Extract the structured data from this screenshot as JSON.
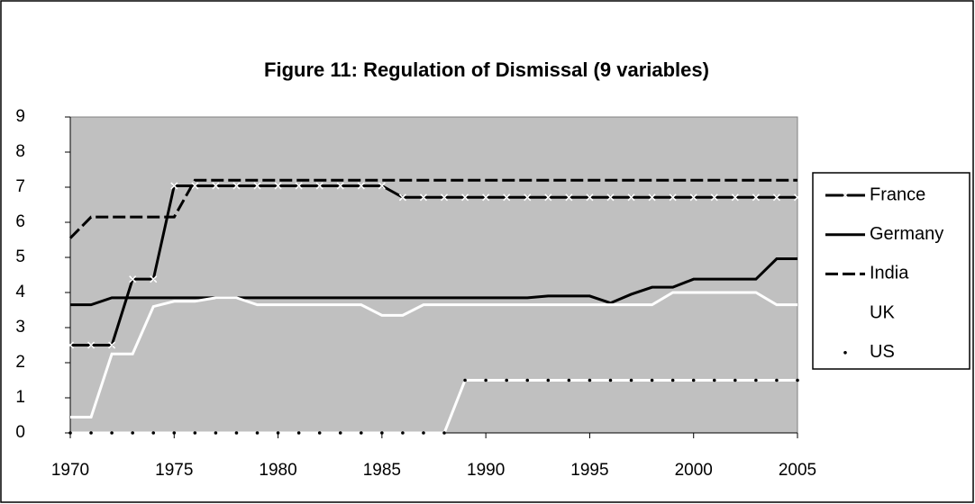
{
  "chart_data": {
    "type": "line",
    "title": "Figure 11: Regulation of Dismissal (9 variables)",
    "x": [
      1970,
      1971,
      1972,
      1973,
      1974,
      1975,
      1976,
      1977,
      1978,
      1979,
      1980,
      1981,
      1982,
      1983,
      1984,
      1985,
      1986,
      1987,
      1988,
      1989,
      1990,
      1991,
      1992,
      1993,
      1994,
      1995,
      1996,
      1997,
      1998,
      1999,
      2000,
      2001,
      2002,
      2003,
      2004,
      2005
    ],
    "xlim": [
      1970,
      2005
    ],
    "xticks": [
      1970,
      1975,
      1980,
      1985,
      1990,
      1995,
      2000,
      2005
    ],
    "ylim": [
      0,
      9
    ],
    "yticks": [
      0,
      1,
      2,
      3,
      4,
      5,
      6,
      7,
      8,
      9
    ],
    "grid": false,
    "background": "#c0c0c0",
    "legend": "right",
    "series": [
      {
        "name": "France",
        "color": "#000000",
        "line_style": "solid",
        "marker": "x",
        "marker_color": "#ffffff",
        "values": [
          2.5,
          2.5,
          2.5,
          4.38,
          4.38,
          7.04,
          7.04,
          7.04,
          7.04,
          7.04,
          7.04,
          7.04,
          7.04,
          7.04,
          7.04,
          7.04,
          6.71,
          6.71,
          6.71,
          6.71,
          6.71,
          6.71,
          6.71,
          6.71,
          6.71,
          6.71,
          6.71,
          6.71,
          6.71,
          6.71,
          6.71,
          6.71,
          6.71,
          6.71,
          6.71,
          6.71
        ]
      },
      {
        "name": "Germany",
        "color": "#000000",
        "line_style": "solid",
        "marker": null,
        "values": [
          3.65,
          3.65,
          3.85,
          3.85,
          3.85,
          3.85,
          3.85,
          3.85,
          3.85,
          3.85,
          3.85,
          3.85,
          3.85,
          3.85,
          3.85,
          3.85,
          3.85,
          3.85,
          3.85,
          3.85,
          3.85,
          3.85,
          3.85,
          3.9,
          3.9,
          3.9,
          3.7,
          3.95,
          4.15,
          4.15,
          4.38,
          4.38,
          4.38,
          4.38,
          4.96,
          4.96
        ]
      },
      {
        "name": "India",
        "color": "#000000",
        "line_style": "dashed",
        "marker": null,
        "values": [
          5.55,
          6.15,
          6.15,
          6.15,
          6.15,
          6.15,
          7.2,
          7.2,
          7.2,
          7.2,
          7.2,
          7.2,
          7.2,
          7.2,
          7.2,
          7.2,
          7.2,
          7.2,
          7.2,
          7.2,
          7.2,
          7.2,
          7.2,
          7.2,
          7.2,
          7.2,
          7.2,
          7.2,
          7.2,
          7.2,
          7.2,
          7.2,
          7.2,
          7.2,
          7.2,
          7.2
        ]
      },
      {
        "name": "UK",
        "color": "#ffffff",
        "line_style": "solid",
        "marker": null,
        "values": [
          0.45,
          0.45,
          2.25,
          2.25,
          3.6,
          3.75,
          3.75,
          3.85,
          3.85,
          3.65,
          3.65,
          3.65,
          3.65,
          3.65,
          3.65,
          3.35,
          3.35,
          3.65,
          3.65,
          3.65,
          3.65,
          3.65,
          3.65,
          3.65,
          3.65,
          3.65,
          3.65,
          3.65,
          3.65,
          4.0,
          4.0,
          4.0,
          4.0,
          4.0,
          3.65,
          3.65
        ]
      },
      {
        "name": "US",
        "color": "#ffffff",
        "line_style": "solid",
        "marker": "dot",
        "marker_color": "#000000",
        "values": [
          0,
          0,
          0,
          0,
          0,
          0,
          0,
          0,
          0,
          0,
          0,
          0,
          0,
          0,
          0,
          0,
          0,
          0,
          0,
          1.5,
          1.5,
          1.5,
          1.5,
          1.5,
          1.5,
          1.5,
          1.5,
          1.5,
          1.5,
          1.5,
          1.5,
          1.5,
          1.5,
          1.5,
          1.5,
          1.5
        ]
      }
    ]
  }
}
